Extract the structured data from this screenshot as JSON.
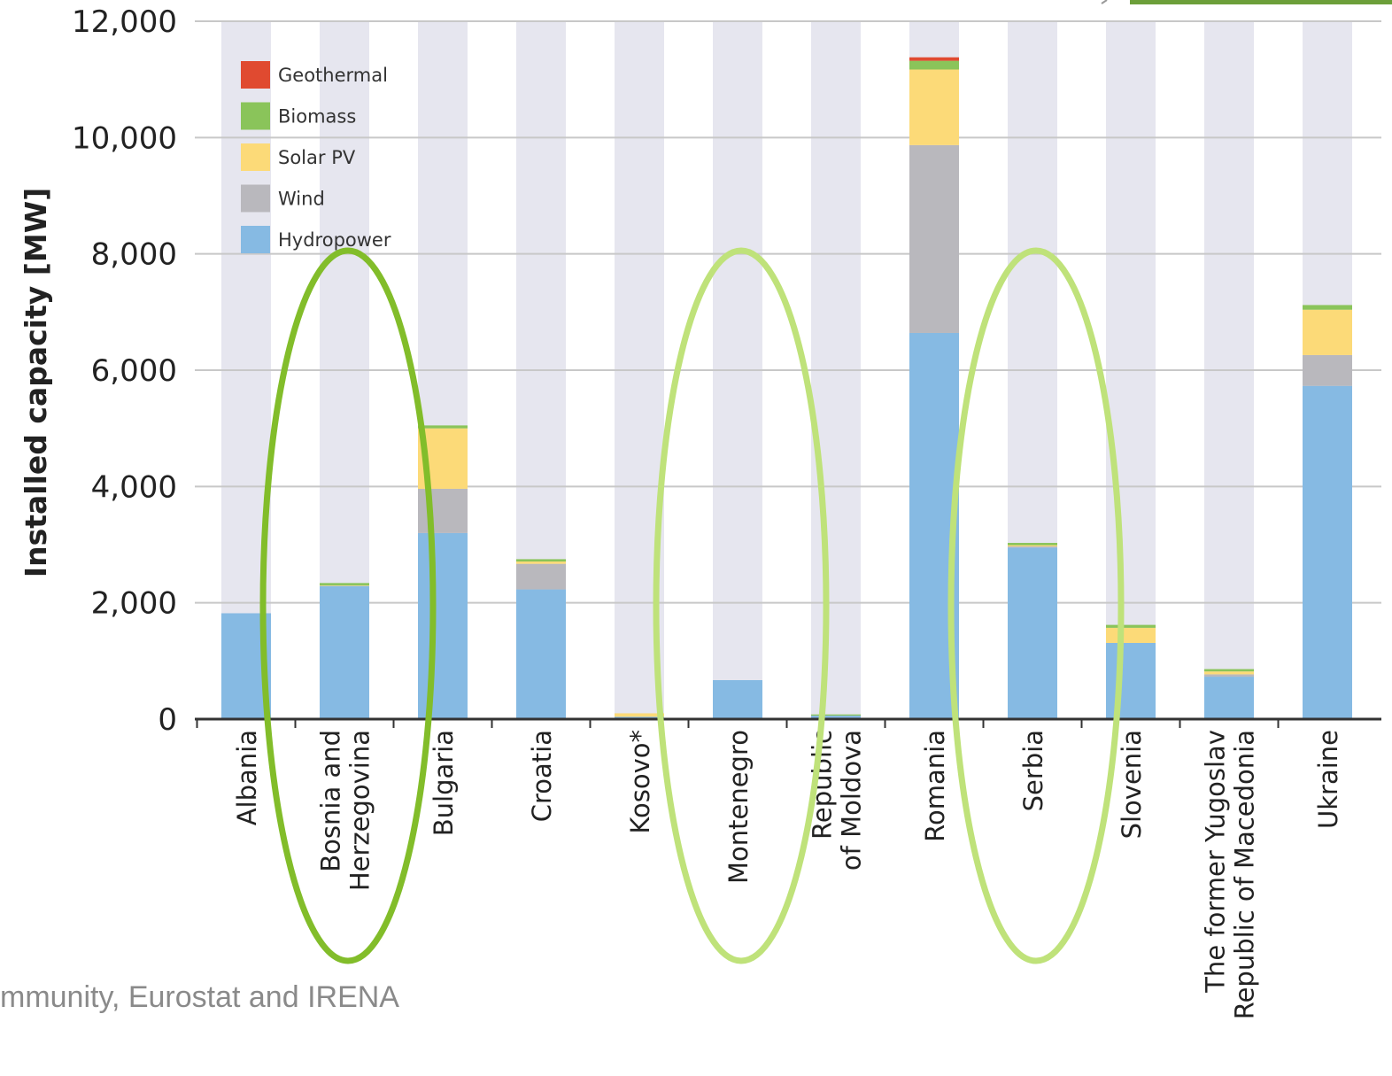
{
  "source_text": "mmunity, Eurostat and IRENA",
  "colors": {
    "background_column": "#e6e6ef",
    "grid": "#c8c8c8",
    "axis": "#333333",
    "highlight_dark": "#82bd2a",
    "highlight_light": "#bfe27a",
    "corner_accent": "#6c9f3a"
  },
  "highlights": [
    {
      "category": "Bosnia and Herzegovina",
      "style": "dark"
    },
    {
      "category": "Montenegro",
      "style": "light"
    },
    {
      "category": "Serbia",
      "style": "light"
    }
  ],
  "chart_data": {
    "type": "bar",
    "stacked": true,
    "ylabel": "Installed capacity [MW]",
    "xlabel": "",
    "ylim": [
      0,
      12000
    ],
    "yticks": [
      0,
      2000,
      4000,
      6000,
      8000,
      10000,
      12000
    ],
    "ytick_labels": [
      "0",
      "2,000",
      "4,000",
      "6,000",
      "8,000",
      "10,000",
      "12,000"
    ],
    "grid": true,
    "legend_position": "top-left",
    "categories": [
      "Albania",
      "Bosnia and Herzegovina",
      "Bulgaria",
      "Croatia",
      "Kosovo*",
      "Montenegro",
      "Republic of Moldova",
      "Romania",
      "Serbia",
      "Slovenia",
      "The former Yugoslav Republic of Macedonia",
      "Ukraine"
    ],
    "category_label_lines": [
      [
        "Albania"
      ],
      [
        "Bosnia and",
        "Herzegovina"
      ],
      [
        "Bulgaria"
      ],
      [
        "Croatia"
      ],
      [
        "Kosovo*"
      ],
      [
        "Montenegro"
      ],
      [
        "Republic",
        "of Moldova"
      ],
      [
        "Romania"
      ],
      [
        "Serbia"
      ],
      [
        "Slovenia"
      ],
      [
        "The former Yugoslav",
        "Republic of Macedonia"
      ],
      [
        "Ukraine"
      ]
    ],
    "series": [
      {
        "name": "Hydropower",
        "color": "#86bae3",
        "values": [
          1820,
          2290,
          3200,
          2230,
          40,
          670,
          60,
          6640,
          2950,
          1310,
          730,
          5730
        ]
      },
      {
        "name": "Wind",
        "color": "#b9b8bd",
        "values": [
          0,
          0,
          760,
          440,
          0,
          0,
          0,
          3230,
          20,
          0,
          40,
          530
        ]
      },
      {
        "name": "Solar PV",
        "color": "#fcda78",
        "values": [
          0,
          10,
          1040,
          40,
          60,
          0,
          0,
          1300,
          20,
          260,
          50,
          780
        ]
      },
      {
        "name": "Biomass",
        "color": "#8ac45a",
        "values": [
          0,
          40,
          50,
          40,
          0,
          0,
          20,
          150,
          40,
          50,
          40,
          80
        ]
      },
      {
        "name": "Geothermal",
        "color": "#e04a30",
        "values": [
          0,
          0,
          0,
          0,
          0,
          0,
          0,
          60,
          0,
          0,
          0,
          0
        ]
      }
    ],
    "legend_order": [
      "Geothermal",
      "Biomass",
      "Solar PV",
      "Wind",
      "Hydropower"
    ]
  }
}
